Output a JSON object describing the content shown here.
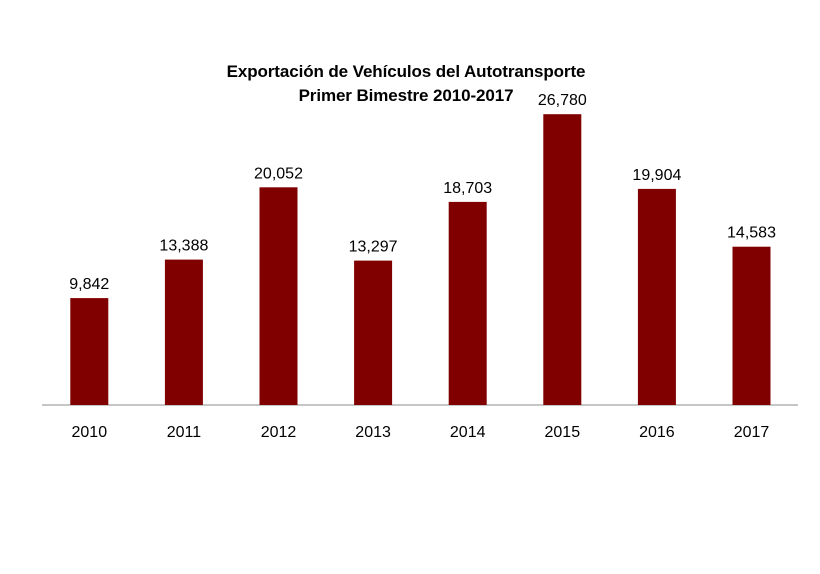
{
  "chart_data": {
    "type": "bar",
    "title": "Exportación de Vehículos del Autotransporte",
    "subtitle": "Primer Bimestre 2010-2017",
    "xlabel": "",
    "ylabel": "",
    "categories": [
      "2010",
      "2011",
      "2012",
      "2013",
      "2014",
      "2015",
      "2016",
      "2017"
    ],
    "values": [
      9842,
      13388,
      20052,
      13297,
      18703,
      26780,
      19904,
      14583
    ],
    "value_labels": [
      "9,842",
      "13,388",
      "20,052",
      "13,297",
      "18,703",
      "26,780",
      "19,904",
      "14,583"
    ],
    "ylim": [
      0,
      35000
    ],
    "grid": false,
    "legend": "none",
    "bar_color": "#800000"
  }
}
